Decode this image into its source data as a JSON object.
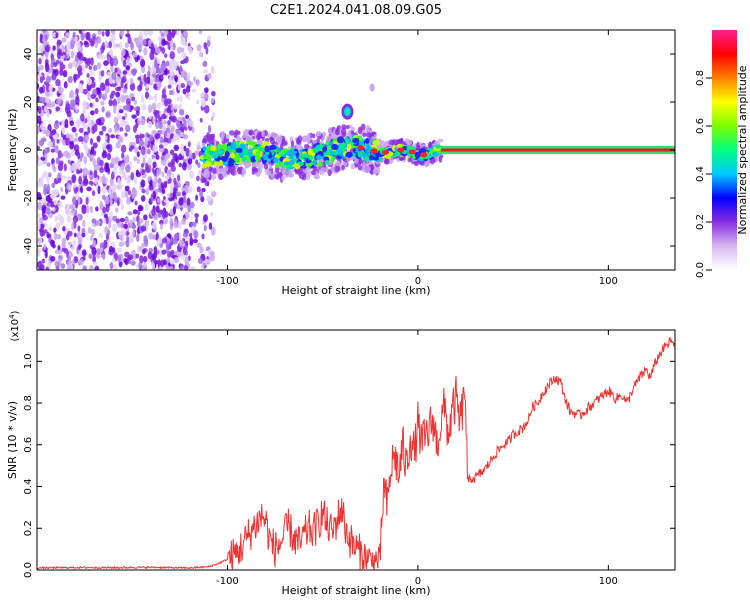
{
  "page": {
    "title": "C2E1.2024.041.08.09.G05"
  },
  "chart_data": [
    {
      "type": "heatmap",
      "xlabel": "Height of straight line (km)",
      "ylabel": "Frequency (Hz)",
      "xlim": [
        -200,
        135
      ],
      "ylim": [
        -50,
        50
      ],
      "xticks": [
        -100,
        0,
        100
      ],
      "xtick_labels": [
        "-100",
        "0",
        "100"
      ],
      "yticks": [
        -40,
        -20,
        0,
        20,
        40
      ],
      "ytick_labels": [
        "-40",
        "-20",
        "0",
        "20",
        "40"
      ],
      "grid": false,
      "noise_region_x": [
        -200,
        -107
      ],
      "signal_trace": {
        "x": [
          -113,
          -100,
          -90,
          -80,
          -70,
          -60,
          -50,
          -40,
          -35,
          -30,
          -25,
          -20,
          -15,
          -10,
          -5,
          0,
          5,
          10,
          135
        ],
        "y": [
          -3,
          -2,
          -1,
          -1,
          -4,
          -3,
          -2,
          1,
          2,
          1,
          0,
          -1,
          -1,
          0,
          0,
          -2,
          -2,
          0,
          0
        ]
      },
      "hotspots": [
        {
          "x": -37,
          "y": 16
        },
        {
          "x": -24,
          "y": 26
        }
      ],
      "colorbar": {
        "label": "Normalized spectral amplitude",
        "range": [
          0,
          1
        ],
        "ticks": [
          0.0,
          0.2,
          0.4,
          0.6,
          0.8
        ],
        "tick_labels": [
          "0.0",
          "0.2",
          "0.4",
          "0.6",
          "0.8"
        ],
        "colors": [
          "#ffffff",
          "#d8b8f0",
          "#8a2be2",
          "#0000ff",
          "#00c8ff",
          "#00ff80",
          "#7cff00",
          "#ffff00",
          "#ff8000",
          "#ff0000",
          "#ff2090"
        ]
      }
    },
    {
      "type": "line",
      "xlabel": "Height of straight line (km)",
      "ylabel": "SNR (10 * v/v)",
      "y_multiplier_label": "(x10",
      "y_multiplier_exp": "4",
      "y_multiplier_close": ")",
      "xlim": [
        -200,
        135
      ],
      "ylim": [
        0,
        1.15
      ],
      "xticks": [
        -100,
        0,
        100
      ],
      "xtick_labels": [
        "-100",
        "0",
        "100"
      ],
      "yticks": [
        0.0,
        0.2,
        0.4,
        0.6,
        0.8,
        1.0
      ],
      "ytick_labels": [
        "0.0",
        "0.2",
        "0.4",
        "0.6",
        "0.8",
        "1.0"
      ],
      "grid": false,
      "series": [
        {
          "color": "#ee3333",
          "x": [
            -200,
            -180,
            -160,
            -140,
            -120,
            -110,
            -105,
            -98,
            -95,
            -92,
            -88,
            -85,
            -82,
            -80,
            -78,
            -75,
            -72,
            -70,
            -68,
            -65,
            -62,
            -60,
            -57,
            -55,
            -52,
            -50,
            -48,
            -45,
            -42,
            -40,
            -38,
            -36,
            -34,
            -32,
            -30,
            -28,
            -26,
            -24,
            -22,
            -20,
            -18,
            -16,
            -14,
            -12,
            -10,
            -8,
            -6,
            -4,
            -2,
            0,
            2,
            5,
            8,
            10,
            12,
            14,
            16,
            18,
            20,
            22,
            24,
            25,
            26,
            28,
            30,
            35,
            38,
            40,
            45,
            48,
            50,
            55,
            58,
            60,
            63,
            65,
            68,
            70,
            72,
            75,
            78,
            80,
            85,
            90,
            95,
            100,
            104,
            107,
            110,
            112,
            115,
            118,
            120,
            122,
            125,
            128,
            131,
            133,
            135
          ],
          "y": [
            0.01,
            0.012,
            0.011,
            0.013,
            0.01,
            0.015,
            0.03,
            0.06,
            0.08,
            0.12,
            0.18,
            0.22,
            0.26,
            0.24,
            0.15,
            0.1,
            0.13,
            0.17,
            0.21,
            0.15,
            0.12,
            0.16,
            0.2,
            0.18,
            0.23,
            0.28,
            0.22,
            0.18,
            0.25,
            0.3,
            0.2,
            0.15,
            0.12,
            0.1,
            0.08,
            0.06,
            0.05,
            0.04,
            0.04,
            0.02,
            0.4,
            0.3,
            0.5,
            0.55,
            0.45,
            0.6,
            0.48,
            0.65,
            0.55,
            0.7,
            0.6,
            0.65,
            0.72,
            0.6,
            0.7,
            0.78,
            0.65,
            0.75,
            0.82,
            0.7,
            0.8,
            0.86,
            0.42,
            0.44,
            0.44,
            0.48,
            0.52,
            0.55,
            0.6,
            0.62,
            0.65,
            0.68,
            0.72,
            0.78,
            0.8,
            0.84,
            0.88,
            0.9,
            0.92,
            0.9,
            0.8,
            0.76,
            0.74,
            0.78,
            0.82,
            0.86,
            0.82,
            0.84,
            0.8,
            0.85,
            0.9,
            0.94,
            0.96,
            0.92,
            1.0,
            1.05,
            1.08,
            1.1,
            1.06
          ]
        }
      ]
    }
  ]
}
